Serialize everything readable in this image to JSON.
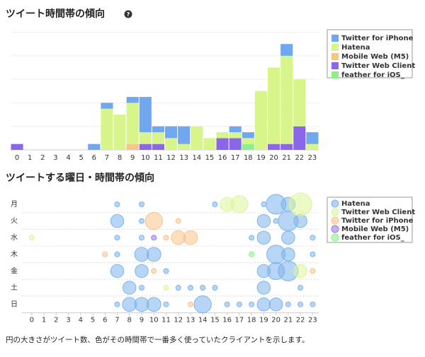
{
  "help_icon": "?",
  "note": "円の大きさがツイート数、色がその時間帯で一番多く使っていたクライアントを示します。",
  "chart_data": [
    {
      "type": "stacked-bar",
      "title": "ツイート時間帯の傾向",
      "categories": [
        "0",
        "1",
        "2",
        "3",
        "4",
        "5",
        "6",
        "7",
        "8",
        "9",
        "10",
        "11",
        "12",
        "13",
        "14",
        "15",
        "16",
        "17",
        "18",
        "19",
        "20",
        "21",
        "22",
        "23"
      ],
      "ylim": [
        0,
        22
      ],
      "yticks": [
        0,
        4,
        8,
        12,
        16,
        20
      ],
      "grid": true,
      "legend": "top-right",
      "series": [
        {
          "name": "Twitter for iPhone",
          "color": "#6fa8ee",
          "values": [
            0,
            0,
            0,
            0,
            0,
            0,
            1,
            1,
            0,
            1,
            6,
            1,
            2,
            3,
            0,
            0,
            0,
            1,
            1,
            0,
            0,
            2,
            0,
            2
          ]
        },
        {
          "name": "Hatena",
          "color": "#d8f58c",
          "values": [
            0,
            0,
            0,
            0,
            0,
            0,
            0,
            7,
            6,
            7,
            2,
            2,
            2,
            1,
            4,
            2,
            1,
            1,
            1,
            10,
            13,
            15,
            8,
            1
          ]
        },
        {
          "name": "Mobile Web (M5)",
          "color": "#f7c48a",
          "values": [
            0,
            0,
            0,
            0,
            0,
            0,
            0,
            0,
            0,
            1,
            0,
            0,
            0,
            0,
            0,
            0,
            0,
            0,
            0,
            0,
            0,
            0,
            0,
            0
          ]
        },
        {
          "name": "Twitter Web Client",
          "color": "#8b66e8",
          "values": [
            1,
            0,
            0,
            0,
            0,
            0,
            0,
            0,
            0,
            0,
            1,
            1,
            0,
            0,
            0,
            0,
            2,
            2,
            0,
            0,
            1,
            1,
            4,
            0
          ]
        },
        {
          "name": "feather for iOS_",
          "color": "#8ef08b",
          "values": [
            0,
            0,
            0,
            0,
            0,
            0,
            0,
            0,
            0,
            0,
            0,
            0,
            0,
            0,
            0,
            0,
            0,
            0,
            1,
            0,
            0,
            0,
            0,
            0
          ]
        }
      ]
    },
    {
      "type": "bubble",
      "title": "ツイートする曜日・時間帯の傾向",
      "y_categories": [
        "月",
        "火",
        "水",
        "木",
        "金",
        "土",
        "日"
      ],
      "xlim": [
        -0.8,
        23.5
      ],
      "xticks": [
        0,
        1,
        2,
        3,
        4,
        5,
        6,
        7,
        8,
        9,
        10,
        11,
        12,
        13,
        14,
        15,
        16,
        17,
        18,
        19,
        20,
        21,
        22,
        23
      ],
      "legend": "top-right",
      "series": [
        {
          "name": "Hatena",
          "color": "#7cb5ec",
          "x": [
            7,
            9,
            15,
            19,
            20,
            21,
            7,
            9,
            19,
            20,
            21,
            22,
            7,
            9,
            18,
            19,
            21,
            23,
            7,
            9,
            10,
            20,
            21,
            23,
            7,
            9,
            11,
            19,
            20,
            21,
            8,
            9,
            12,
            13,
            14,
            15,
            19,
            22,
            7,
            8,
            9,
            10,
            11,
            14,
            16,
            17,
            18,
            19,
            20,
            21,
            22,
            23
          ],
          "y": [
            "月",
            "月",
            "月",
            "月",
            "月",
            "月",
            "火",
            "火",
            "火",
            "火",
            "火",
            "火",
            "水",
            "水",
            "水",
            "水",
            "水",
            "水",
            "木",
            "木",
            "木",
            "木",
            "木",
            "木",
            "金",
            "金",
            "金",
            "金",
            "金",
            "金",
            "土",
            "土",
            "土",
            "土",
            "土",
            "土",
            "土",
            "土",
            "日",
            "日",
            "日",
            "日",
            "日",
            "日",
            "日",
            "日",
            "日",
            "日",
            "日",
            "日",
            "日",
            "日"
          ],
          "sizes": [
            1,
            1,
            1,
            1,
            16,
            8,
            7,
            1,
            7,
            1,
            16,
            7,
            1,
            1,
            1,
            7,
            7,
            1,
            1,
            8,
            8,
            14,
            7,
            1,
            7,
            7,
            1,
            7,
            12,
            16,
            7,
            1,
            1,
            1,
            1,
            1,
            7,
            1,
            1,
            8,
            8,
            8,
            1,
            12,
            1,
            1,
            1,
            7,
            7,
            1,
            1,
            1
          ]
        },
        {
          "name": "Twitter Web Client",
          "color": "#dcf59a",
          "x": [
            16,
            17,
            22,
            0,
            22,
            11
          ],
          "y": [
            "月",
            "月",
            "月",
            "水",
            "金",
            "土"
          ],
          "sizes": [
            8,
            12,
            21,
            1,
            7,
            1
          ]
        },
        {
          "name": "Twitter for iPhone",
          "color": "#f7c48a",
          "x": [
            10,
            12,
            11,
            12,
            13,
            6,
            10,
            23,
            13
          ],
          "y": [
            "火",
            "火",
            "水",
            "水",
            "水",
            "木",
            "金",
            "金",
            "日"
          ],
          "sizes": [
            12,
            1,
            1,
            8,
            8,
            1,
            1,
            1,
            1
          ]
        },
        {
          "name": "Mobile Web (M5)",
          "color": "#9b7be8",
          "x": [
            10
          ],
          "y": [
            "水"
          ],
          "sizes": [
            1
          ]
        },
        {
          "name": "feather for iOS_",
          "color": "#8ef08b",
          "x": [
            18
          ],
          "y": [
            "木"
          ],
          "sizes": [
            1
          ]
        }
      ]
    }
  ]
}
